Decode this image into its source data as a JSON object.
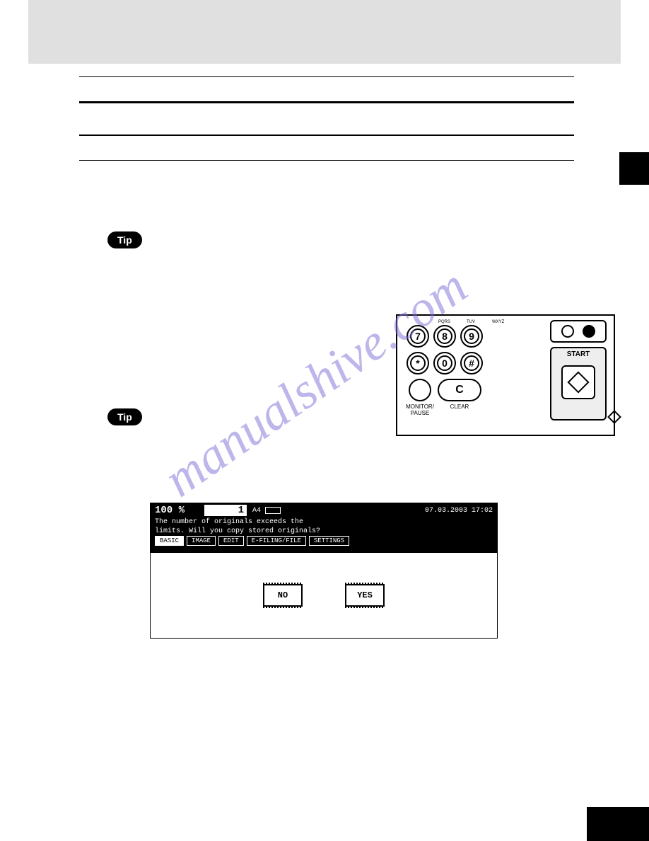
{
  "tips": {
    "label": "Tip"
  },
  "panel": {
    "keys_row1": [
      "7",
      "8",
      "9"
    ],
    "keys_row2": [
      "*",
      "0",
      "#"
    ],
    "pqrs": "PQRS",
    "tuv": "TUV",
    "wxyz": "WXYZ",
    "clear": "C",
    "clear_label": "CLEAR",
    "monitor_label": "MONITOR/\nPAUSE",
    "start_label": "START"
  },
  "lcd": {
    "zoom": "100  %",
    "qty": "1",
    "paper": "A4",
    "datetime": "07.03.2003 17:02",
    "msg_line1": "The number of originals exceeds the",
    "msg_line2": "limits. Will you copy stored originals?",
    "tabs": [
      "BASIC",
      "IMAGE",
      "EDIT",
      "E-FILING/FILE",
      "SETTINGS"
    ],
    "active_tab": 0,
    "no_btn": "NO",
    "yes_btn": "YES"
  },
  "watermark_text": "manualshive.com",
  "colors": {
    "header_bg": "#e0e0e0",
    "black": "#000000",
    "white": "#ffffff",
    "watermark": "#7b6fd8"
  }
}
